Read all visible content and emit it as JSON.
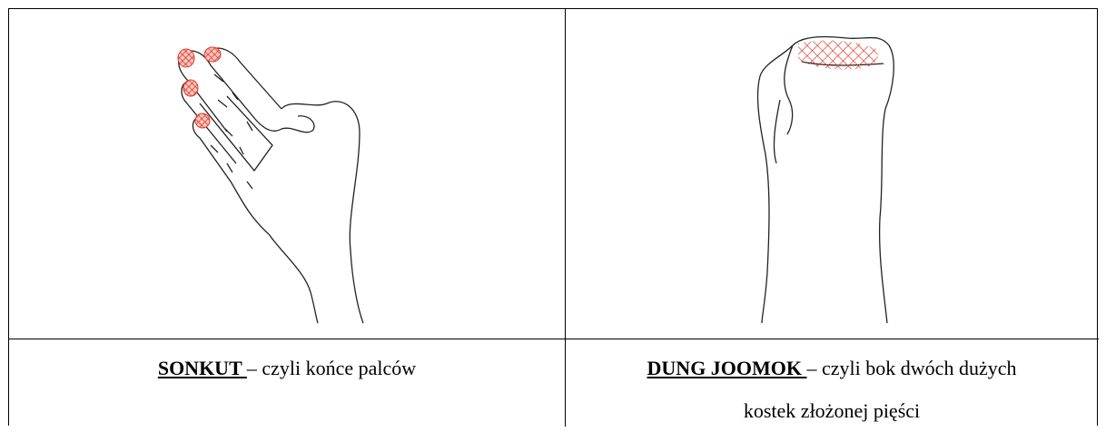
{
  "table": {
    "rows": [
      [
        {
          "caption": {
            "term": "SONKUT ",
            "lines": [
              "– czyli końce palców"
            ]
          }
        },
        {
          "caption": {
            "term": "DUNG JOOMOK ",
            "lines": [
              "– czyli bok dwóch dużych",
              "kostek złożonej pięści"
            ]
          }
        }
      ]
    ]
  }
}
